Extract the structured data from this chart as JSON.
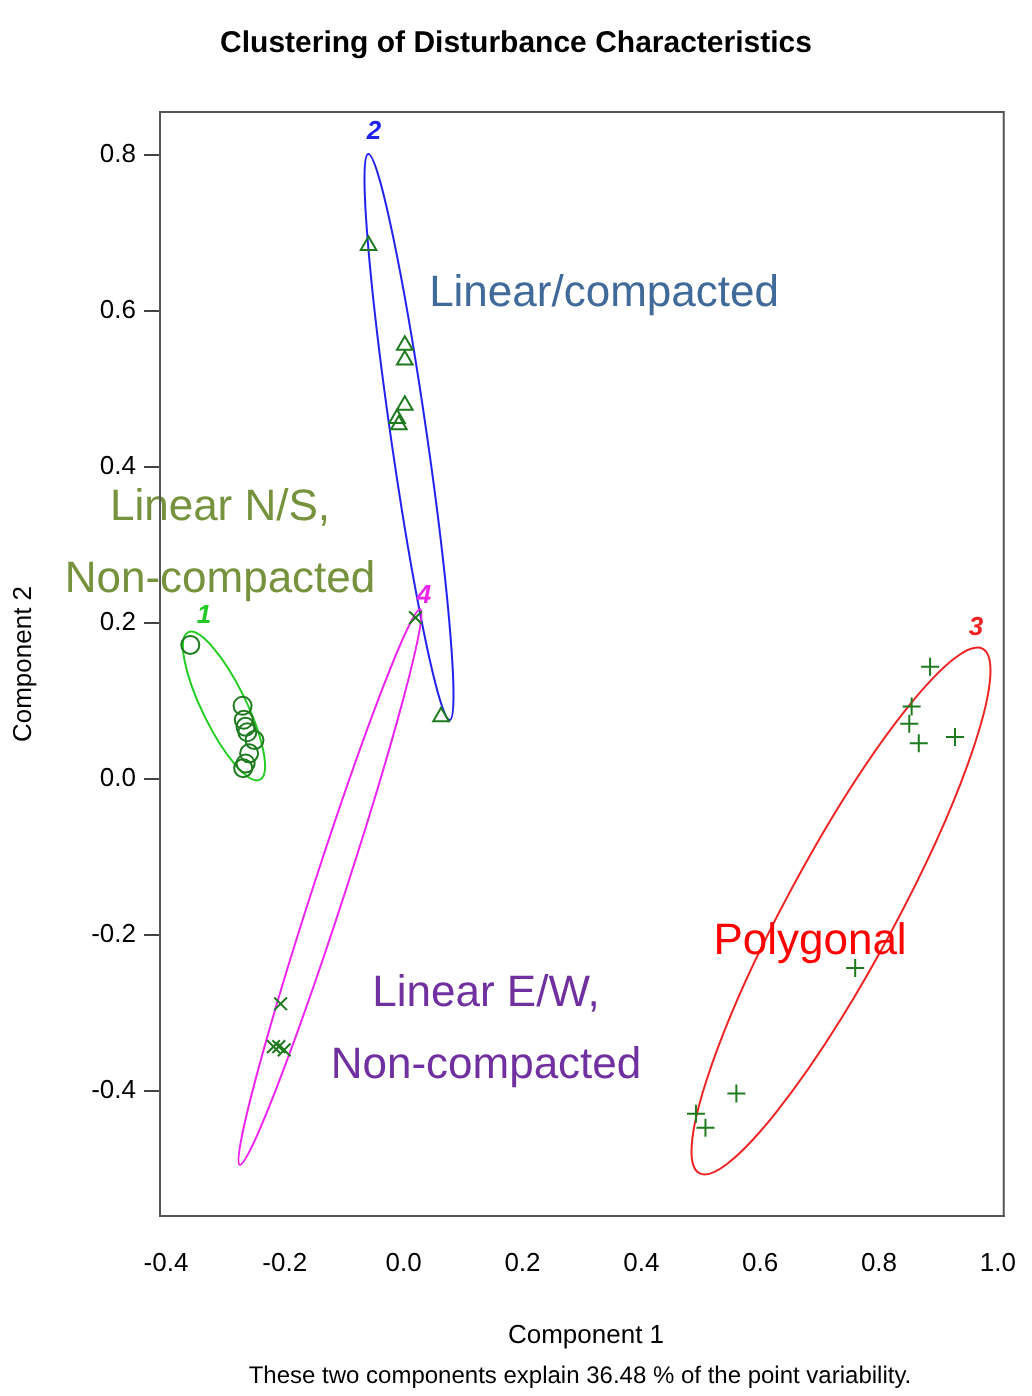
{
  "chart_data": {
    "type": "scatter",
    "title": "Clustering of Disturbance Characteristics",
    "xlabel": "Component 1",
    "ylabel": "Component 2",
    "xlim": [
      -0.41,
      1.01
    ],
    "ylim": [
      -0.56,
      0.855
    ],
    "xticks": [
      {
        "value": -0.4,
        "label": "-0.4"
      },
      {
        "value": -0.2,
        "label": "-0.2"
      },
      {
        "value": 0,
        "label": "0.0"
      },
      {
        "value": 0.2,
        "label": "0.2"
      },
      {
        "value": 0.4,
        "label": "0.4"
      },
      {
        "value": 0.6,
        "label": "0.6"
      },
      {
        "value": 0.8,
        "label": "0.8"
      },
      {
        "value": 1,
        "label": "1.0"
      }
    ],
    "yticks": [
      {
        "value": -0.4,
        "label": "-0.4"
      },
      {
        "value": -0.2,
        "label": "-0.2"
      },
      {
        "value": 0,
        "label": "0.0"
      },
      {
        "value": 0.2,
        "label": "0.2"
      },
      {
        "value": 0.4,
        "label": "0.4"
      },
      {
        "value": 0.6,
        "label": "0.6"
      },
      {
        "value": 0.8,
        "label": "0.8"
      }
    ],
    "grid": false,
    "legend": false,
    "series": [
      {
        "color": "#1e7a1e",
        "marker": "circle",
        "x": [
          -0.359,
          -0.271,
          -0.269,
          -0.266,
          -0.263,
          -0.251,
          -0.26,
          -0.266,
          -0.27
        ],
        "values": [
          0.172,
          0.094,
          0.076,
          0.067,
          0.06,
          0.05,
          0.033,
          0.02,
          0.014
        ]
      },
      {
        "color": "#1e7a1e",
        "marker": "triangle",
        "x": [
          -0.059,
          0.002,
          0.002,
          0.002,
          -0.011,
          -0.008,
          0.063
        ],
        "values": [
          0.684,
          0.556,
          0.537,
          0.479,
          0.462,
          0.454,
          0.08
        ]
      },
      {
        "color": "#1e7a1e",
        "marker": "cross",
        "x": [
          0.886,
          0.855,
          0.851,
          0.867,
          0.928,
          0.76,
          0.56,
          0.492,
          0.508
        ],
        "values": [
          0.144,
          0.093,
          0.071,
          0.046,
          0.054,
          -0.242,
          -0.403,
          -0.429,
          -0.447
        ]
      },
      {
        "color": "#1e7a1e",
        "marker": "cross",
        "x": [
          0.02,
          -0.207,
          -0.21,
          -0.201,
          -0.219
        ],
        "values": [
          0.207,
          -0.288,
          -0.343,
          -0.347,
          -0.343
        ]
      }
    ],
    "annotations": [
      "1",
      "2",
      "3",
      "4",
      "Linear/compacted",
      "Linear N/S,\nNon-compacted",
      "Linear E/W,\nNon-compacted",
      "Polygonal",
      "These two components explain 36.48 % of the point variability."
    ]
  }
}
